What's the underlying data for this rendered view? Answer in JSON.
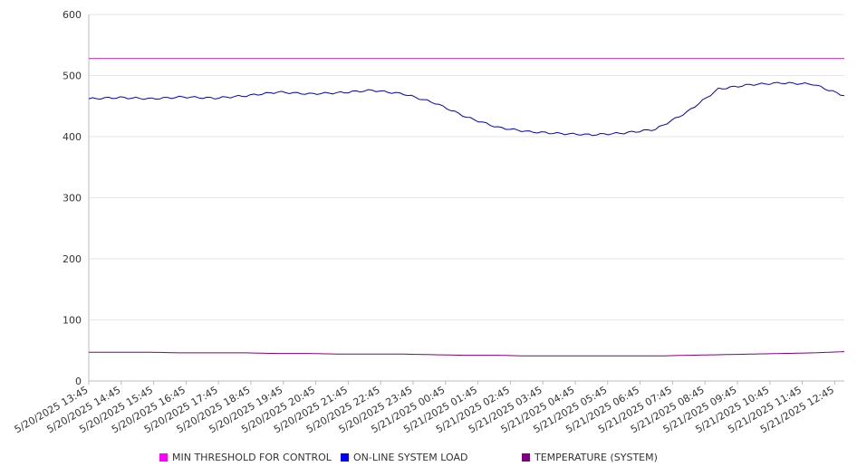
{
  "chart_data": {
    "type": "line",
    "title": "",
    "xlabel": "",
    "ylabel": "",
    "ylim": [
      0,
      600
    ],
    "y_ticks": [
      0,
      100,
      200,
      300,
      400,
      500,
      600
    ],
    "grid": "horizontal",
    "legend_placement": "bottom",
    "x_tick_labels": [
      "5/20/2025 13:45",
      "5/20/2025 14:45",
      "5/20/2025 15:45",
      "5/20/2025 16:45",
      "5/20/2025 17:45",
      "5/20/2025 18:45",
      "5/20/2025 19:45",
      "5/20/2025 20:45",
      "5/20/2025 21:45",
      "5/20/2025 22:45",
      "5/20/2025 23:45",
      "5/21/2025 00:45",
      "5/21/2025 01:45",
      "5/21/2025 02:45",
      "5/21/2025 03:45",
      "5/21/2025 04:45",
      "5/21/2025 05:45",
      "5/21/2025 06:45",
      "5/21/2025 07:45",
      "5/21/2025 08:45",
      "5/21/2025 09:45",
      "5/21/2025 10:45",
      "5/21/2025 11:45",
      "5/21/2025 12:45"
    ],
    "series": [
      {
        "name": "MIN THRESHOLD FOR CONTROL",
        "color": "#cc33cc",
        "legend_color": "#ff00ff",
        "values": [
          528,
          528,
          528,
          528,
          528,
          528,
          528,
          528,
          528,
          528,
          528,
          528,
          528,
          528,
          528,
          528,
          528,
          528,
          528,
          528,
          528,
          528,
          528,
          528,
          528
        ]
      },
      {
        "name": "ON-LINE SYSTEM LOAD",
        "color": "#0000cc",
        "legend_color": "#0000ff",
        "values": [
          462,
          464,
          462,
          465,
          463,
          467,
          473,
          470,
          472,
          476,
          470,
          455,
          432,
          415,
          408,
          405,
          403,
          406,
          412,
          440,
          478,
          485,
          488,
          486,
          467
        ]
      },
      {
        "name": "TEMPERATURE (SYSTEM)",
        "color": "#800080",
        "legend_color": "#800080",
        "values": [
          47,
          47,
          47,
          46,
          46,
          46,
          45,
          45,
          44,
          44,
          44,
          43,
          42,
          42,
          41,
          41,
          41,
          41,
          41,
          42,
          43,
          44,
          45,
          46,
          48
        ]
      }
    ]
  }
}
